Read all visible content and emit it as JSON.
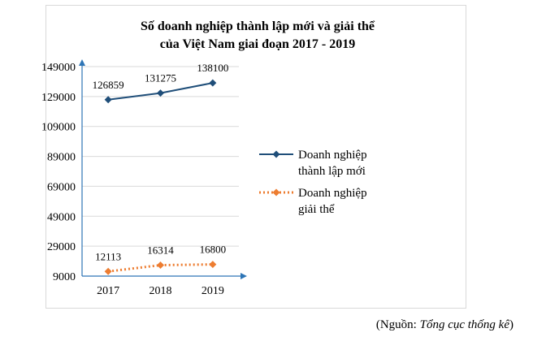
{
  "chart_data": {
    "type": "line",
    "title_lines": [
      "Số doanh nghiệp thành lập mới và giải thể",
      "của Việt Nam giai đoạn 2017 - 2019"
    ],
    "categories": [
      "2017",
      "2018",
      "2019"
    ],
    "y_ticks": [
      "9000",
      "29000",
      "49000",
      "69000",
      "89000",
      "109000",
      "129000",
      "149000"
    ],
    "ylim": [
      9000,
      149000
    ],
    "grid": true,
    "legend_position": "right",
    "series": [
      {
        "name_lines": [
          "Doanh nghiệp",
          "thành lập mới"
        ],
        "values": [
          126859,
          131275,
          138100
        ],
        "labels": [
          "126859",
          "131275",
          "138100"
        ],
        "color": "#1f4e79",
        "line_style": "solid",
        "marker": "diamond"
      },
      {
        "name_lines": [
          "Doanh nghiệp",
          "giải thể"
        ],
        "values": [
          12113,
          16314,
          16800
        ],
        "labels": [
          "12113",
          "16314",
          "16800"
        ],
        "color": "#ed7d31",
        "line_style": "dotted",
        "marker": "diamond"
      }
    ]
  },
  "source": {
    "prefix": "(Nguồn: ",
    "name": "Tổng cục thống kê",
    "suffix": ")"
  }
}
